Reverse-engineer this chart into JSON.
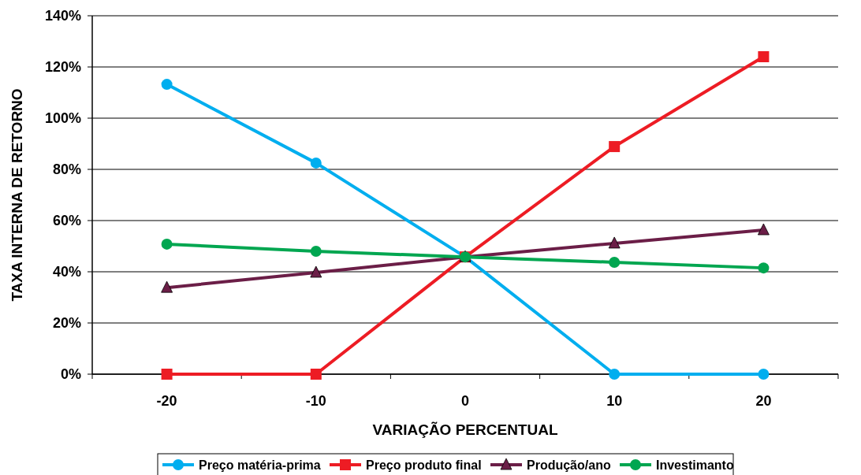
{
  "chart_data": {
    "type": "line",
    "xlabel": "VARIAÇÃO PERCENTUAL",
    "ylabel": "TAXA INTERNA DE RETORNO",
    "categories": [
      "-20",
      "-10",
      "0",
      "10",
      "20"
    ],
    "ylim": [
      0,
      1.4
    ],
    "yticks": [
      {
        "value": 0,
        "label": "0%"
      },
      {
        "value": 0.2,
        "label": "20%"
      },
      {
        "value": 0.4,
        "label": "40%"
      },
      {
        "value": 0.6,
        "label": "60%"
      },
      {
        "value": 0.8,
        "label": "80%"
      },
      {
        "value": 1,
        "label": "100%"
      },
      {
        "value": 1.2,
        "label": "120%"
      },
      {
        "value": 1.4,
        "label": "140%"
      }
    ],
    "grid": "y",
    "legend": "bottom",
    "line_style": "solid",
    "series": [
      {
        "name": "Preço matéria-prima",
        "color": "#00aeef",
        "marker": "circle",
        "values": [
          1.132,
          0.825,
          0.458,
          0,
          0
        ]
      },
      {
        "name": "Preço produto final",
        "color": "#ed1c24",
        "marker": "square",
        "values": [
          0,
          0,
          0.458,
          0.889,
          1.24
        ]
      },
      {
        "name": "Produção/ano",
        "color": "#6b1e47",
        "marker": "triangle",
        "values": [
          0.338,
          0.397,
          0.458,
          0.511,
          0.563
        ]
      },
      {
        "name": "Investimanto",
        "color": "#00a650",
        "marker": "circle",
        "values": [
          0.508,
          0.48,
          0.458,
          0.437,
          0.415
        ]
      }
    ]
  }
}
